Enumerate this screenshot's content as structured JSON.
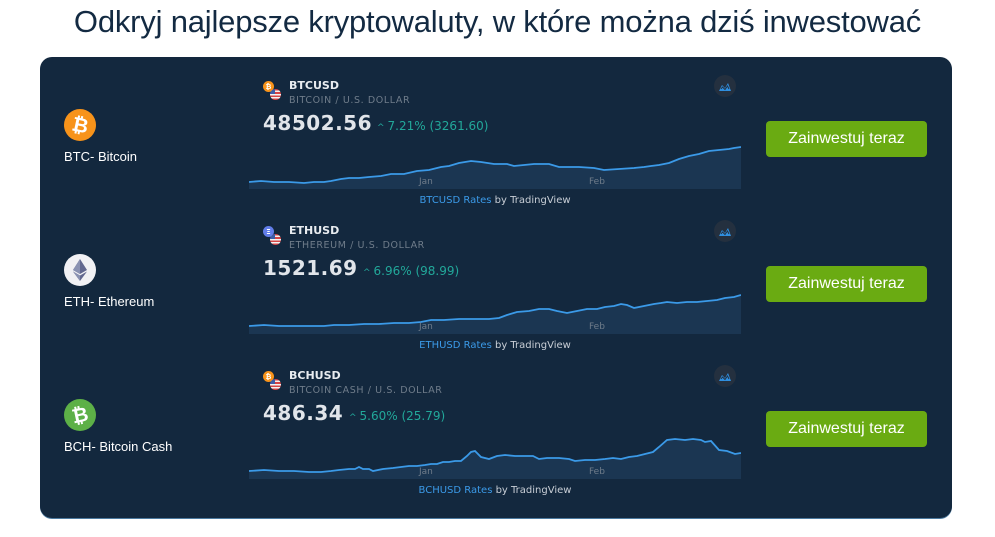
{
  "page": {
    "title": "Odkryj najlepsze kryptowaluty, w które można dziś inwestować"
  },
  "colors": {
    "panel_bg": "#13283e",
    "button_bg": "#6aab12",
    "positive": "#22a89a",
    "line": "#3b9ae8",
    "btc": "#f7931a",
    "eth_bg": "#f1f1f4",
    "bch": "#5db047"
  },
  "rows": [
    {
      "coin_label": "BTC- Bitcoin",
      "coin_icon": "bitcoin-icon",
      "symbol": "BTCUSD",
      "description": "BITCOIN / U.S. DOLLAR",
      "price": "48502.56",
      "change": "7.21% (3261.60)",
      "credit_link": "BTCUSD Rates",
      "credit_suffix": " by TradingView",
      "months": [
        "Jan",
        "Feb"
      ],
      "button": "Zainwestuj teraz"
    },
    {
      "coin_label": "ETH- Ethereum",
      "coin_icon": "ethereum-icon",
      "symbol": "ETHUSD",
      "description": "ETHEREUM / U.S. DOLLAR",
      "price": "1521.69",
      "change": "6.96% (98.99)",
      "credit_link": "ETHUSD Rates",
      "credit_suffix": " by TradingView",
      "months": [
        "Jan",
        "Feb"
      ],
      "button": "Zainwestuj teraz"
    },
    {
      "coin_label": "BCH- Bitcoin Cash",
      "coin_icon": "bitcoin-cash-icon",
      "symbol": "BCHUSD",
      "description": "BITCOIN CASH / U.S. DOLLAR",
      "price": "486.34",
      "change": "5.60% (25.79)",
      "credit_link": "BCHUSD Rates",
      "credit_suffix": " by TradingView",
      "months": [
        "Jan",
        "Feb"
      ],
      "button": "Zainwestuj teraz"
    }
  ],
  "icons": {
    "arrow_up": "^",
    "btc_glyph": "₿"
  }
}
